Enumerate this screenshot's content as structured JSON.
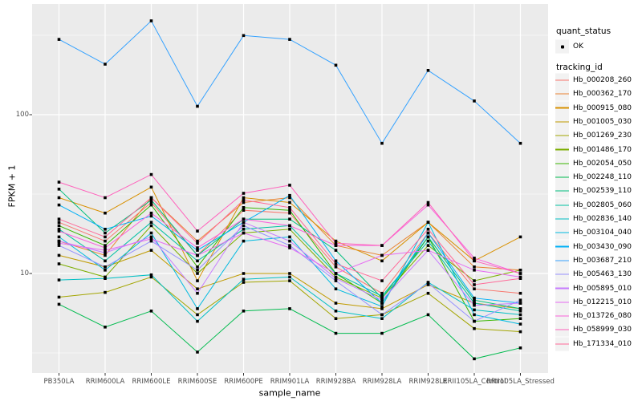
{
  "figure": {
    "panel_bg": "#EBEBEB",
    "grid_color": "#FFFFFF",
    "tick_color": "#333333",
    "axis_text_color": "#4D4D4D",
    "point_color": "#000000",
    "legend_key_bg": "#F2F2F2"
  },
  "axes": {
    "x_title": "sample_name",
    "y_title": "FPKM + 1",
    "y_ticks": [
      {
        "label": "100",
        "value": 100
      },
      {
        "label": "10",
        "value": 10
      }
    ],
    "y_minor_breaks": [
      316.23,
      31.623,
      3.1623
    ]
  },
  "legend": {
    "quant_title": "quant_status",
    "quant_items": [
      {
        "label": "OK"
      }
    ],
    "tracking_title": "tracking_id"
  },
  "chart_data": {
    "type": "line",
    "title": "",
    "xlabel": "sample_name",
    "ylabel": "FPKM + 1",
    "y_scale": "log10",
    "ylim": [
      2.4,
      500
    ],
    "grid": true,
    "legend_position": "right",
    "point_marker": {
      "shape": "small-black-square",
      "legend_label": "OK"
    },
    "categories": [
      "PB350LA",
      "RRIM600LA",
      "RRIM600LE",
      "RRIM600SE",
      "RRIM600PE",
      "RRIM901LA",
      "RRIM928BA",
      "RRIM928LA",
      "RRIM928LE",
      "RRII105LA_Control",
      "RRII105LA_Stressed"
    ],
    "series": [
      {
        "name": "Hb_000208_260",
        "color": "#F8766D",
        "values": [
          21,
          16,
          28,
          13,
          25,
          24,
          11,
          7.5,
          18,
          8,
          7.5
        ]
      },
      {
        "name": "Hb_000362_170",
        "color": "#EA8331",
        "values": [
          16,
          13,
          30,
          16,
          28,
          30,
          15,
          13,
          21,
          11,
          10.5
        ]
      },
      {
        "name": "Hb_000915_080",
        "color": "#D89000",
        "values": [
          30,
          24,
          35,
          9,
          30,
          28,
          16,
          12,
          21,
          12,
          17
        ]
      },
      {
        "name": "Hb_001005_030",
        "color": "#C09B00",
        "values": [
          13,
          11,
          14,
          8,
          10,
          10,
          6.5,
          6,
          8.5,
          6.5,
          6
        ]
      },
      {
        "name": "Hb_001269_230",
        "color": "#A3A500",
        "values": [
          7.1,
          7.6,
          9.5,
          5.5,
          8.8,
          9,
          5.2,
          5.5,
          7.5,
          4.5,
          4.3
        ]
      },
      {
        "name": "Hb_001486_170",
        "color": "#7CAE00",
        "values": [
          11.5,
          9.5,
          20,
          10,
          18,
          19,
          9.5,
          7,
          15,
          9,
          10.5
        ]
      },
      {
        "name": "Hb_002054_050",
        "color": "#39B600",
        "values": [
          20,
          15,
          27,
          11,
          26,
          25,
          10,
          6.5,
          17,
          5,
          5.2
        ]
      },
      {
        "name": "Hb_002248_110",
        "color": "#00BB4E",
        "values": [
          6.4,
          4.6,
          5.8,
          3.2,
          5.8,
          6,
          4.2,
          4.2,
          5.5,
          2.9,
          3.4
        ]
      },
      {
        "name": "Hb_002539_110",
        "color": "#00BF7D",
        "values": [
          34,
          18,
          29,
          13,
          22,
          22,
          14,
          7,
          17,
          6.8,
          6
        ]
      },
      {
        "name": "Hb_002805_060",
        "color": "#00C1A3",
        "values": [
          19,
          12,
          21,
          12,
          19,
          20,
          10,
          7.2,
          16,
          6.5,
          5.8
        ]
      },
      {
        "name": "Hb_002836_140",
        "color": "#00BFC4",
        "values": [
          9.1,
          9.3,
          9.8,
          5,
          9.2,
          9.5,
          5.8,
          5.2,
          8.8,
          5.9,
          5.5
        ]
      },
      {
        "name": "Hb_003104_040",
        "color": "#00BAE0",
        "values": [
          17,
          10.5,
          18,
          6,
          16,
          17,
          8,
          6.2,
          21,
          5.5,
          4.8
        ]
      },
      {
        "name": "Hb_003430_090",
        "color": "#00B0F6",
        "values": [
          27,
          19,
          23,
          14,
          21,
          31,
          12,
          6.5,
          18,
          7,
          6.5
        ]
      },
      {
        "name": "Hb_003687_210",
        "color": "#35A2FF",
        "values": [
          298,
          208,
          390,
          113,
          315,
          298,
          205,
          66,
          190,
          122,
          66
        ]
      },
      {
        "name": "Hb_005463_130",
        "color": "#9590FF",
        "values": [
          15,
          11,
          16,
          10.5,
          20,
          15,
          9,
          5.5,
          8.7,
          5,
          6.8
        ]
      },
      {
        "name": "Hb_005895_010",
        "color": "#C77CFF",
        "values": [
          16,
          13.5,
          17,
          7.5,
          21,
          16,
          9.3,
          6.8,
          14,
          6.3,
          6.5
        ]
      },
      {
        "name": "Hb_012215_010",
        "color": "#E76BF3",
        "values": [
          15.5,
          14,
          16.5,
          13,
          18,
          14.5,
          10,
          13,
          14,
          10.5,
          9.5
        ]
      },
      {
        "name": "Hb_013726_080",
        "color": "#FA62DB",
        "values": [
          18.5,
          14.5,
          24,
          14.5,
          22,
          20,
          15,
          15,
          27,
          12.5,
          10
        ]
      },
      {
        "name": "Hb_058999_030",
        "color": "#FF62BC",
        "values": [
          37.6,
          30,
          42,
          18.5,
          32,
          36,
          15.5,
          15,
          28,
          12,
          10
        ]
      },
      {
        "name": "Hb_171334_010",
        "color": "#FF6A98",
        "values": [
          22,
          17,
          30,
          15.5,
          29,
          26,
          11.5,
          9,
          19,
          8.5,
          9.3
        ]
      }
    ]
  }
}
